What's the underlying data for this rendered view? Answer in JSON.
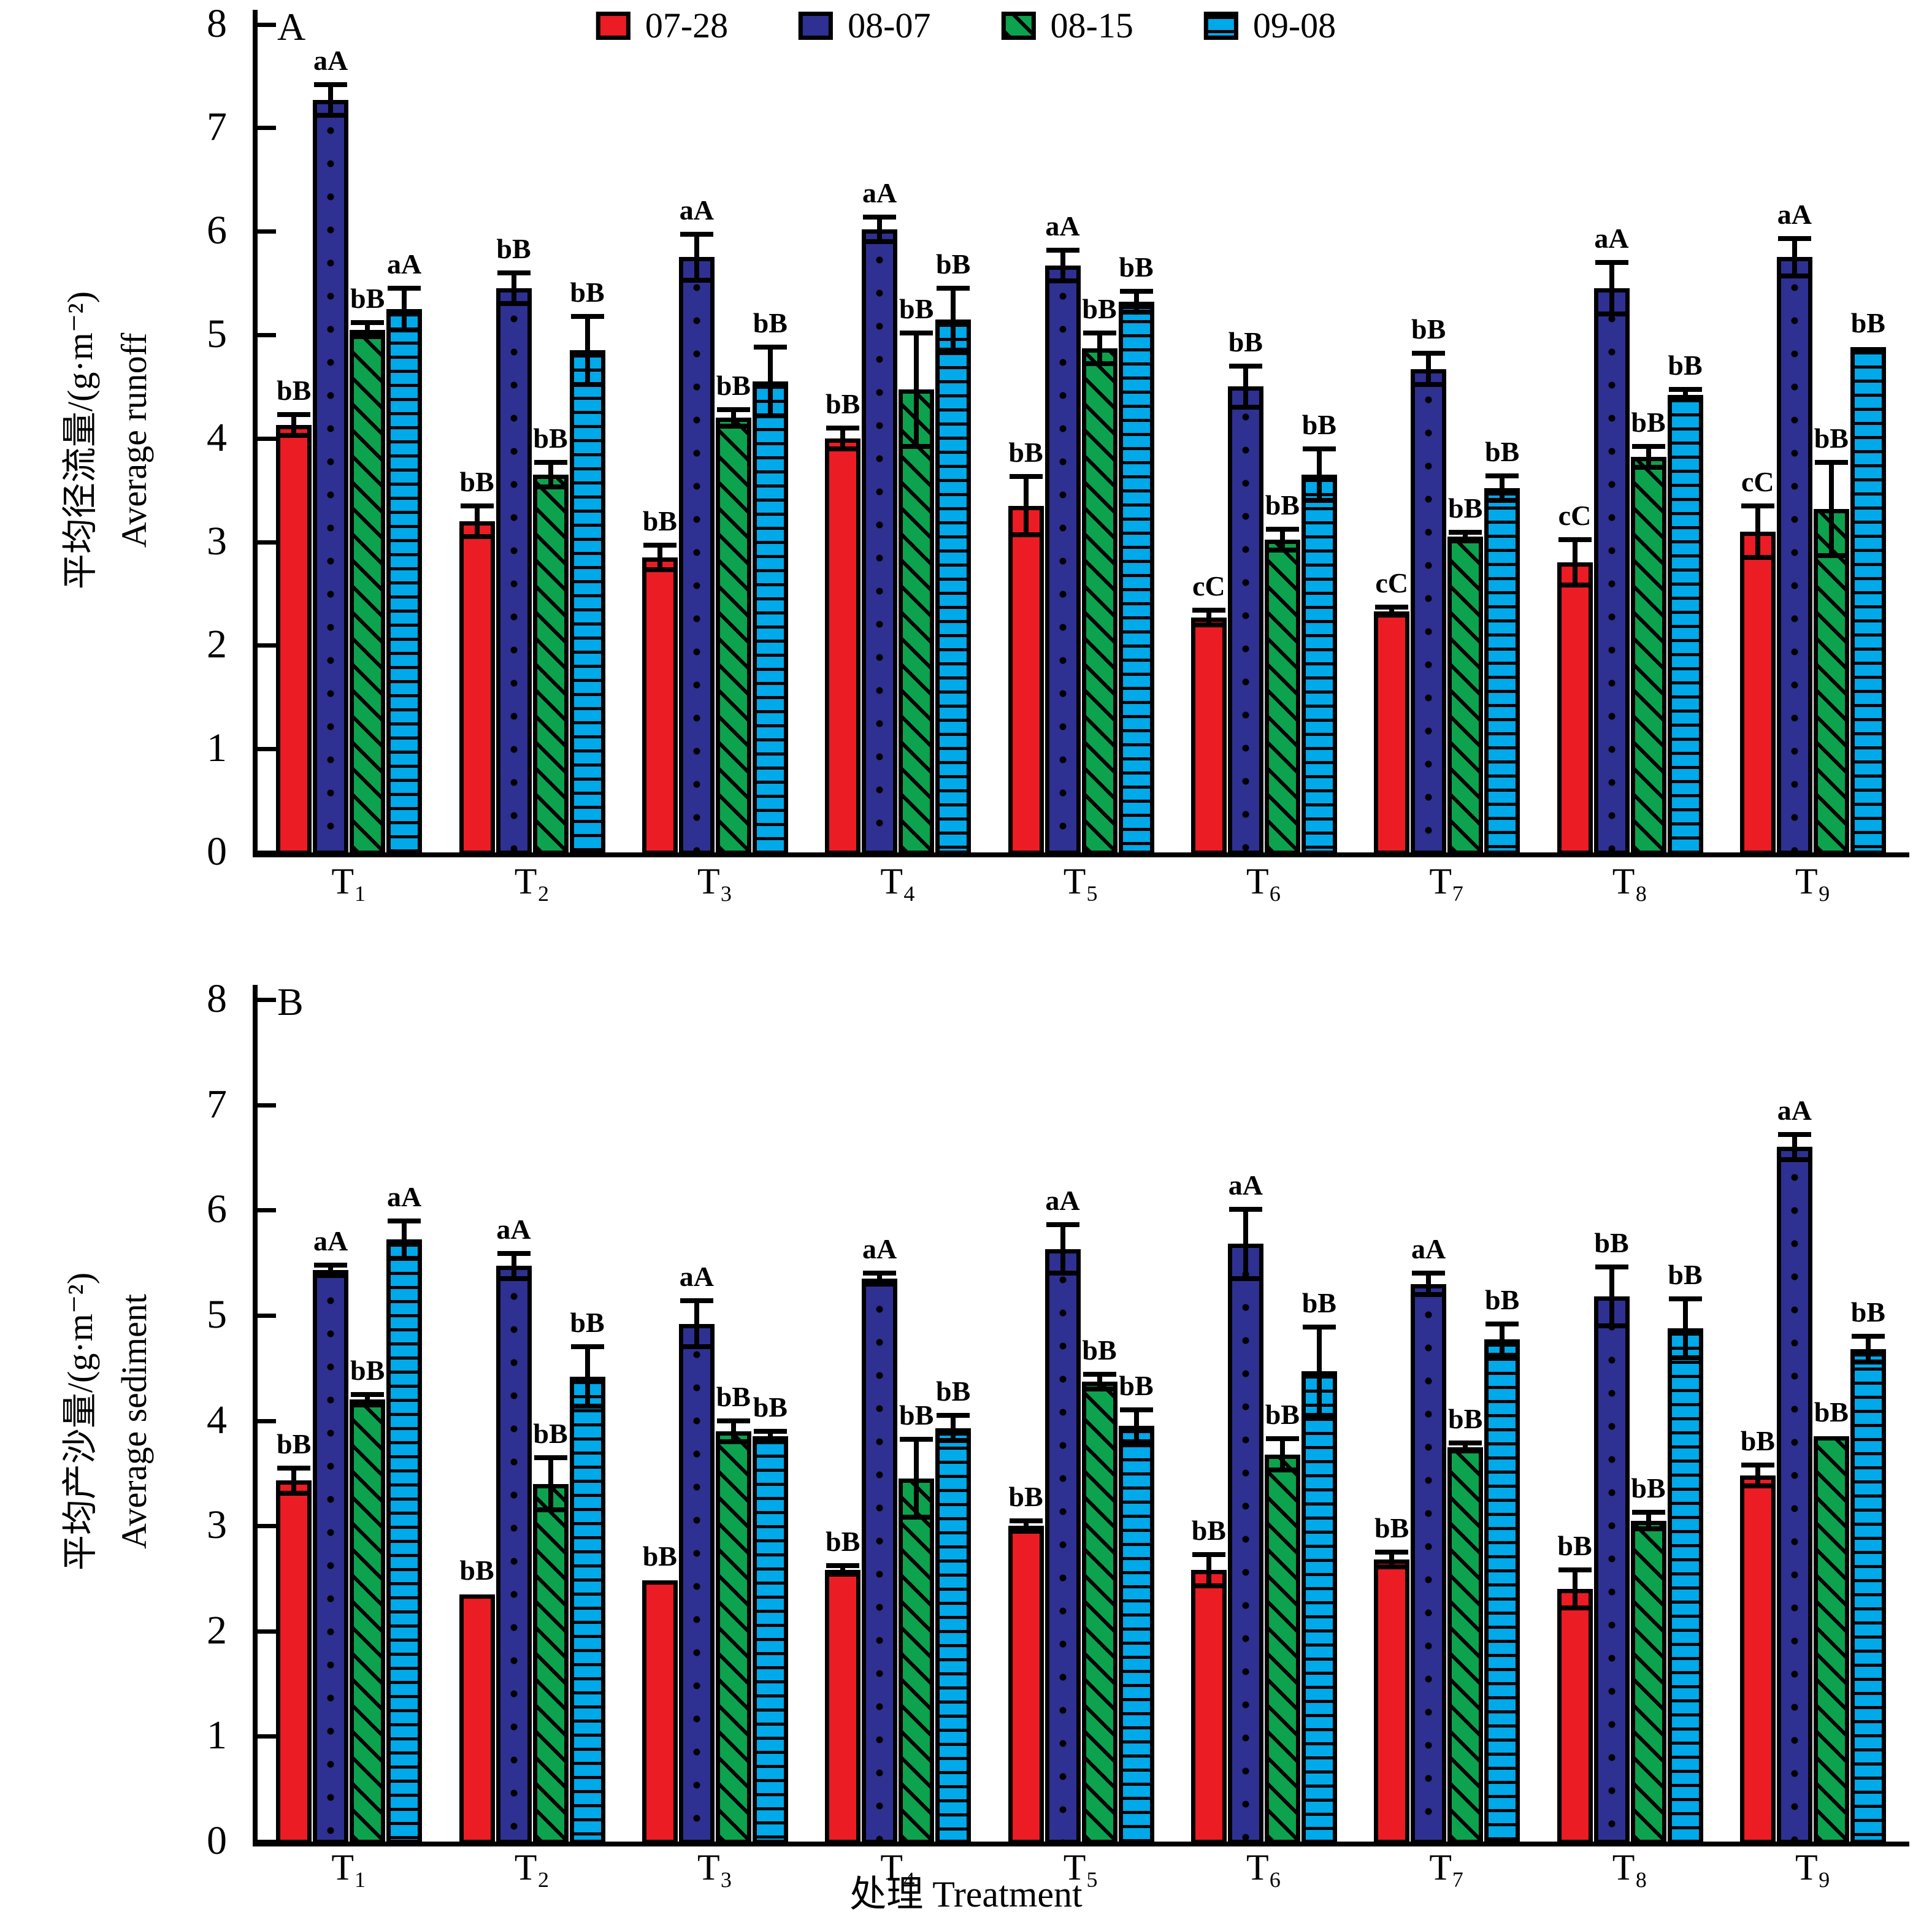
{
  "figure": {
    "xlabel": "处理 Treatment"
  },
  "legend": {
    "items": [
      {
        "label": "07-28",
        "color": "#EC1C24",
        "pattern": "solid"
      },
      {
        "label": "08-07",
        "color": "#2E3192",
        "pattern": "dots"
      },
      {
        "label": "08-15",
        "color": "#0DA24D",
        "pattern": "diag"
      },
      {
        "label": "09-08",
        "color": "#00A9E9",
        "pattern": "hlines"
      }
    ]
  },
  "chart_data": [
    {
      "type": "bar",
      "panel_letter": "A",
      "ylabel_zh": "平均径流量/(g·m⁻²)",
      "ylabel_en": "Average runoff",
      "ylim": [
        0,
        8
      ],
      "yticks": [
        0,
        1,
        2,
        3,
        4,
        5,
        6,
        7,
        8
      ],
      "grid": false,
      "legend_position": "top-center",
      "categories": [
        "T₁",
        "T₂",
        "T₃",
        "T₄",
        "T₅",
        "T₆",
        "T₇",
        "T₈",
        "T₉"
      ],
      "series": [
        {
          "name": "07-28",
          "color": "#EC1C24",
          "pattern": "solid",
          "values": [
            4.13,
            3.2,
            2.85,
            4.0,
            3.35,
            2.27,
            2.33,
            2.8,
            3.1
          ],
          "errors": [
            0.1,
            0.15,
            0.12,
            0.1,
            0.28,
            0.07,
            0.04,
            0.22,
            0.25
          ],
          "letters": [
            "bB",
            "bB",
            "bB",
            "bB",
            "bB",
            "cC",
            "cC",
            "cC",
            "cC"
          ]
        },
        {
          "name": "08-07",
          "color": "#2E3192",
          "pattern": "dots",
          "values": [
            7.27,
            5.45,
            5.75,
            6.02,
            5.67,
            4.5,
            4.67,
            5.45,
            5.75
          ],
          "errors": [
            0.15,
            0.15,
            0.22,
            0.12,
            0.15,
            0.2,
            0.15,
            0.25,
            0.18
          ],
          "letters": [
            "aA",
            "bB",
            "aA",
            "aA",
            "aA",
            "bB",
            "bB",
            "aA",
            "aA"
          ]
        },
        {
          "name": "08-15",
          "color": "#0DA24D",
          "pattern": "diag",
          "values": [
            5.05,
            3.65,
            4.2,
            4.47,
            4.87,
            3.02,
            3.05,
            3.82,
            3.32
          ],
          "errors": [
            0.07,
            0.12,
            0.08,
            0.55,
            0.15,
            0.1,
            0.04,
            0.1,
            0.45
          ],
          "letters": [
            "bB",
            "bB",
            "bB",
            "bB",
            "bB",
            "bB",
            "bB",
            "bB",
            "bB"
          ]
        },
        {
          "name": "09-08",
          "color": "#00A9E9",
          "pattern": "hlines",
          "values": [
            5.25,
            4.85,
            4.55,
            5.15,
            5.32,
            3.65,
            3.52,
            4.42,
            4.88
          ],
          "errors": [
            0.2,
            0.33,
            0.33,
            0.3,
            0.1,
            0.25,
            0.12,
            0.05,
            0
          ],
          "letters": [
            "aA",
            "bB",
            "bB",
            "bB",
            "bB",
            "bB",
            "bB",
            "bB",
            "bB"
          ]
        }
      ]
    },
    {
      "type": "bar",
      "panel_letter": "B",
      "ylabel_zh": "平均产沙量/(g·m⁻²)",
      "ylabel_en": "Average sediment",
      "ylim": [
        0,
        8
      ],
      "yticks": [
        0,
        1,
        2,
        3,
        4,
        5,
        6,
        7,
        8
      ],
      "grid": false,
      "legend_position": "none",
      "categories": [
        "T₁",
        "T₂",
        "T₃",
        "T₄",
        "T₅",
        "T₆",
        "T₇",
        "T₈",
        "T₉"
      ],
      "series": [
        {
          "name": "07-28",
          "color": "#EC1C24",
          "pattern": "solid",
          "values": [
            3.43,
            2.35,
            2.48,
            2.58,
            3.0,
            2.58,
            2.68,
            2.4,
            3.48
          ],
          "errors": [
            0.12,
            0,
            0,
            0.04,
            0.05,
            0.15,
            0.07,
            0.18,
            0.1
          ],
          "letters": [
            "bB",
            "bB",
            "bB",
            "bB",
            "bB",
            "bB",
            "bB",
            "bB",
            "bB"
          ]
        },
        {
          "name": "08-07",
          "color": "#2E3192",
          "pattern": "dots",
          "values": [
            5.43,
            5.47,
            4.92,
            5.35,
            5.63,
            5.68,
            5.3,
            5.18,
            6.6
          ],
          "errors": [
            0.05,
            0.12,
            0.22,
            0.05,
            0.23,
            0.33,
            0.1,
            0.28,
            0.12
          ],
          "letters": [
            "aA",
            "aA",
            "aA",
            "aA",
            "aA",
            "aA",
            "aA",
            "bB",
            "aA"
          ]
        },
        {
          "name": "08-15",
          "color": "#0DA24D",
          "pattern": "diag",
          "values": [
            4.2,
            3.4,
            3.9,
            3.45,
            4.37,
            3.68,
            3.75,
            3.05,
            3.85
          ],
          "errors": [
            0.05,
            0.25,
            0.1,
            0.37,
            0.07,
            0.15,
            0.04,
            0.08,
            0
          ],
          "letters": [
            "bB",
            "bB",
            "bB",
            "bB",
            "bB",
            "bB",
            "bB",
            "bB",
            "bB"
          ]
        },
        {
          "name": "09-08",
          "color": "#00A9E9",
          "pattern": "hlines",
          "values": [
            5.72,
            4.42,
            3.85,
            3.93,
            3.95,
            4.47,
            4.77,
            4.88,
            4.68
          ],
          "errors": [
            0.18,
            0.28,
            0.05,
            0.12,
            0.15,
            0.42,
            0.15,
            0.28,
            0.12
          ],
          "letters": [
            "aA",
            "bB",
            "bB",
            "bB",
            "bB",
            "bB",
            "bB",
            "bB",
            "bB"
          ]
        }
      ]
    }
  ]
}
